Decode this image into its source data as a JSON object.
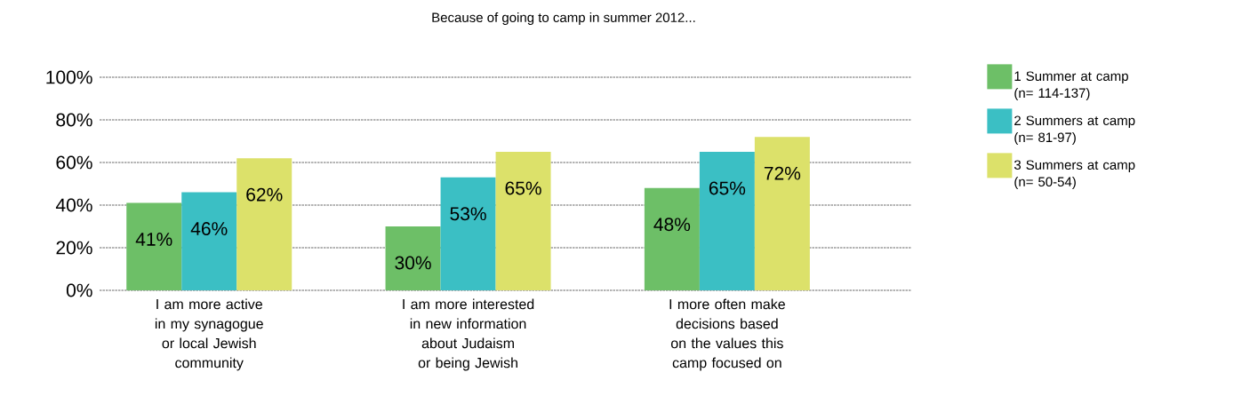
{
  "chart_data": {
    "type": "bar",
    "title": "Because of going to camp in summer 2012...",
    "categories": [
      "I am more active in my synagogue or local Jewish community",
      "I am more interested in new information about Judaism or being Jewish",
      "I more often make decisions based on the values this camp focused on"
    ],
    "series": [
      {
        "name": "1 Summer at camp (n= 114-137)",
        "color": "#6dbf67",
        "values": [
          41,
          30,
          48
        ],
        "value_labels": [
          "41%",
          "30%",
          "48%"
        ]
      },
      {
        "name": "2 Summers at camp (n= 81-97)",
        "color": "#3bbfc4",
        "values": [
          46,
          53,
          65
        ],
        "value_labels": [
          "46%",
          "53%",
          "65%"
        ]
      },
      {
        "name": "3 Summers at camp (n= 50-54)",
        "color": "#dce16a",
        "values": [
          62,
          65,
          72
        ],
        "value_labels": [
          "62%",
          "65%",
          "72%"
        ]
      }
    ],
    "ylim": [
      0,
      100
    ],
    "yticks": [
      {
        "value": 0,
        "label": "0%"
      },
      {
        "value": 20,
        "label": "20%"
      },
      {
        "value": 40,
        "label": "40%"
      },
      {
        "value": 60,
        "label": "60%"
      },
      {
        "value": 80,
        "label": "80%"
      },
      {
        "value": 100,
        "label": "100%"
      }
    ],
    "grid": "y",
    "legend": "right"
  }
}
